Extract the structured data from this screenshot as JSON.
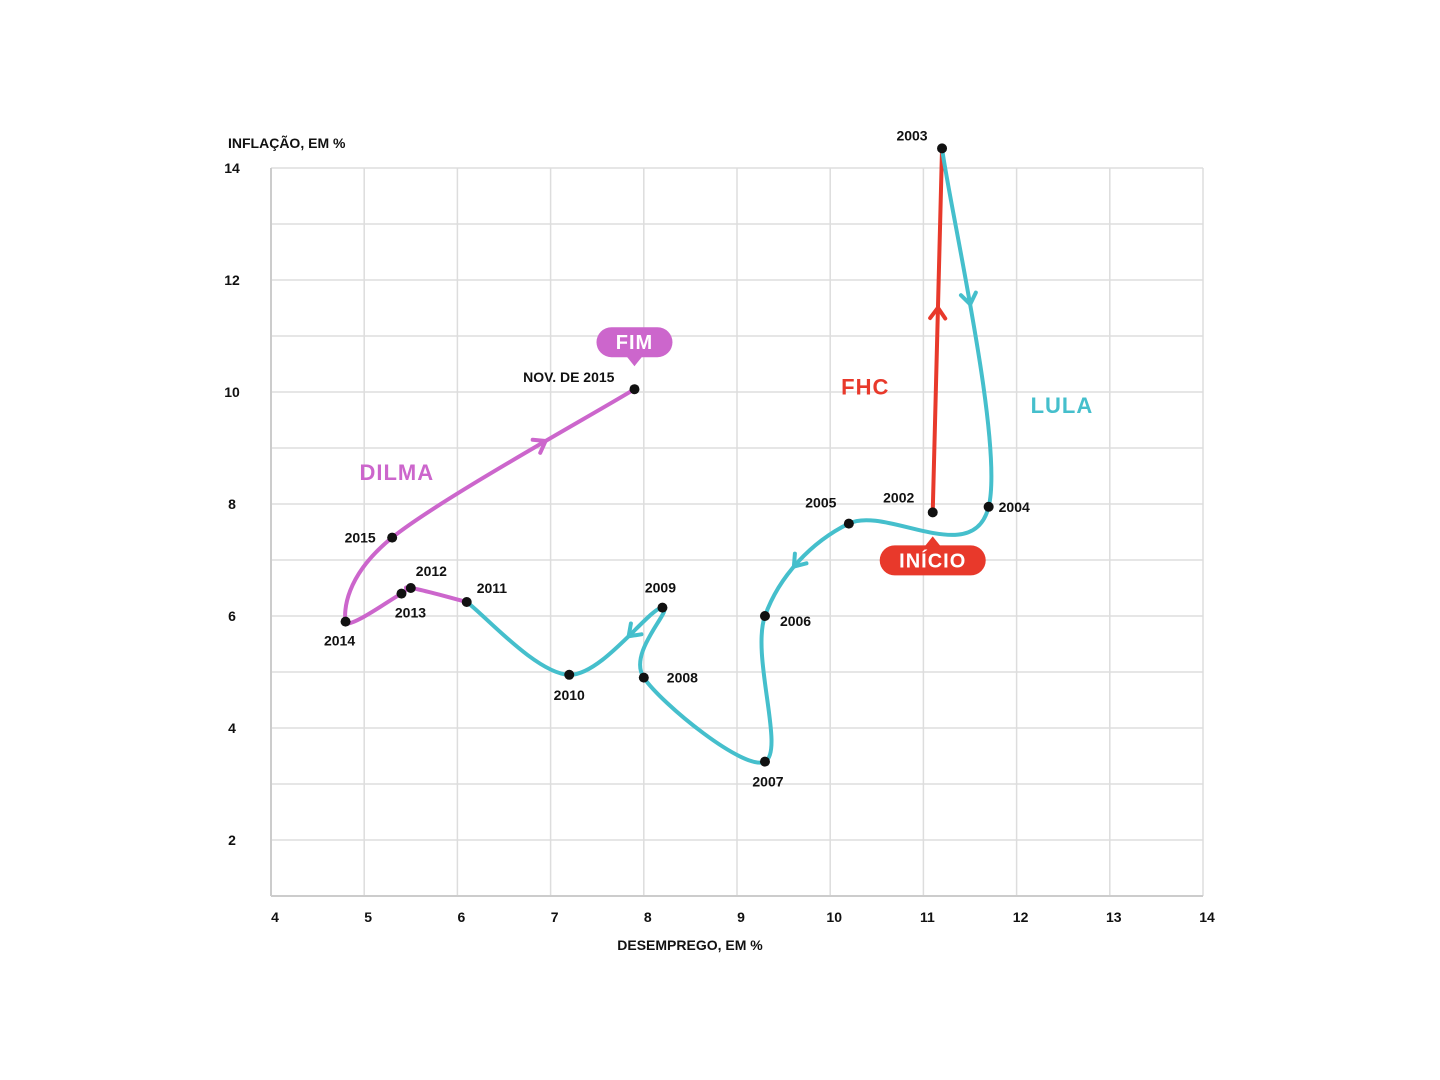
{
  "chart_data": {
    "type": "line",
    "xlabel": "DESEMPREGO, EM %",
    "ylabel": "INFLAÇÃO, EM %",
    "xlim": [
      4,
      14
    ],
    "ylim": [
      1,
      14
    ],
    "x_ticks": [
      4,
      5,
      6,
      7,
      8,
      9,
      10,
      11,
      12,
      13,
      14
    ],
    "y_ticks": [
      2,
      4,
      6,
      8,
      10,
      12,
      14
    ],
    "grid": true,
    "colors": {
      "FHC": "#e8392b",
      "LULA": "#45bfcc",
      "DILMA": "#cc66cc",
      "points": "#111111"
    },
    "series": [
      {
        "name": "FHC",
        "points": [
          {
            "label": "2002",
            "x": 11.1,
            "y": 7.85
          },
          {
            "label": "2003",
            "x": 11.2,
            "y": 14.35
          }
        ]
      },
      {
        "name": "LULA",
        "points": [
          {
            "label": "2003",
            "x": 11.2,
            "y": 14.35
          },
          {
            "label": "2004",
            "x": 11.7,
            "y": 7.95
          },
          {
            "label": "2005",
            "x": 10.2,
            "y": 7.65
          },
          {
            "label": "2006",
            "x": 9.3,
            "y": 6.0
          },
          {
            "label": "2007",
            "x": 9.3,
            "y": 3.4
          },
          {
            "label": "2008",
            "x": 8.0,
            "y": 4.9
          },
          {
            "label": "2009",
            "x": 8.2,
            "y": 6.15
          },
          {
            "label": "2010",
            "x": 7.2,
            "y": 4.95
          },
          {
            "label": "2011",
            "x": 6.1,
            "y": 6.25
          }
        ]
      },
      {
        "name": "DILMA",
        "points": [
          {
            "label": "2011",
            "x": 6.1,
            "y": 6.25
          },
          {
            "label": "2012",
            "x": 5.5,
            "y": 6.5
          },
          {
            "label": "2013",
            "x": 5.4,
            "y": 6.4
          },
          {
            "label": "2014",
            "x": 4.8,
            "y": 5.9
          },
          {
            "label": "2015",
            "x": 5.3,
            "y": 7.4
          },
          {
            "label": "NOV. DE 2015",
            "x": 7.9,
            "y": 10.05
          }
        ]
      }
    ],
    "annotations": [
      {
        "text": "INÍCIO",
        "x": 11.1,
        "y": 7.85,
        "color": "#e8392b"
      },
      {
        "text": "FIM",
        "x": 7.9,
        "y": 10.05,
        "color": "#cc66cc"
      }
    ]
  }
}
